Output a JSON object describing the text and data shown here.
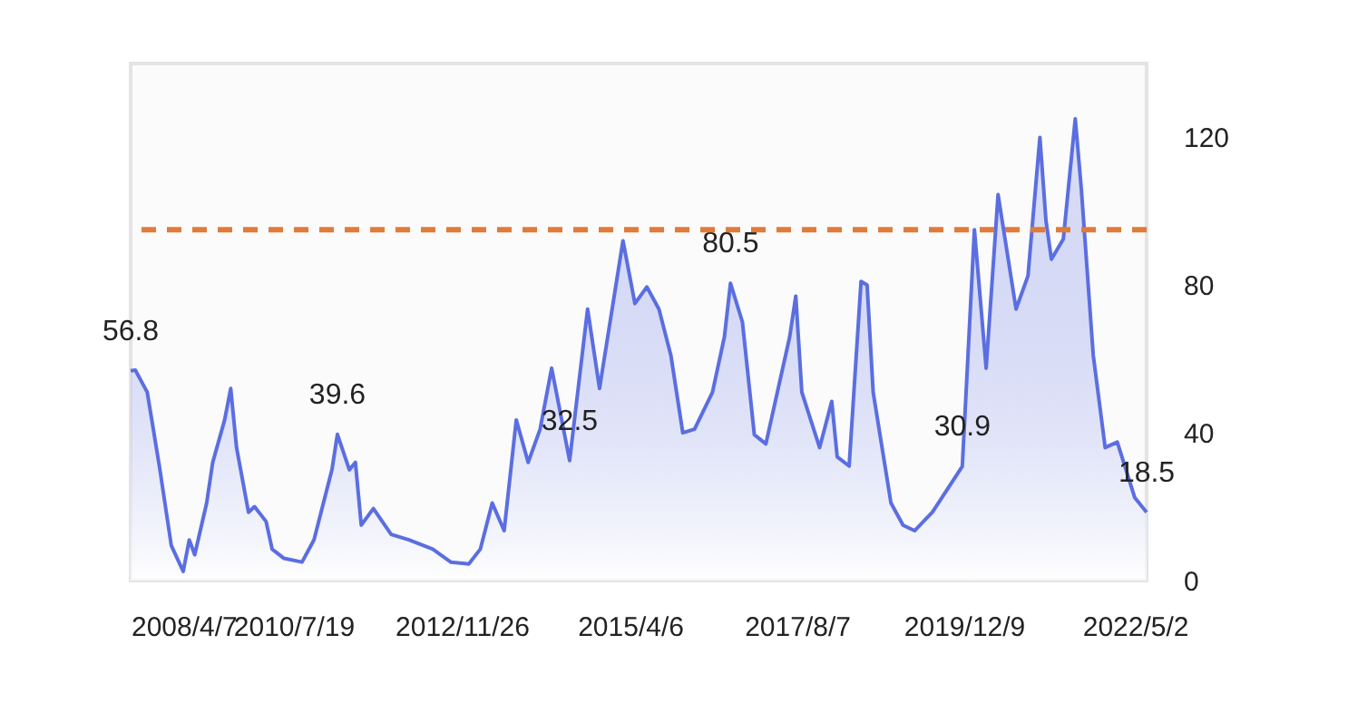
{
  "chart_data": {
    "type": "area",
    "x": [
      "2008-04-07",
      "2008-05",
      "2008-07",
      "2008-09",
      "2008-11",
      "2009-01",
      "2009-02",
      "2009-03",
      "2009-05",
      "2009-06",
      "2009-08",
      "2009-09",
      "2009-10",
      "2009-12",
      "2010-01",
      "2010-03",
      "2010-04",
      "2010-06",
      "2010-09",
      "2010-11",
      "2011-02",
      "2011-03",
      "2011-05",
      "2011-06",
      "2011-07",
      "2011-09",
      "2011-12",
      "2012-03",
      "2012-07",
      "2012-10",
      "2013-01",
      "2013-03",
      "2013-05",
      "2013-07",
      "2013-09",
      "2013-11",
      "2014-01",
      "2014-03",
      "2014-06",
      "2014-09",
      "2014-11",
      "2015-03",
      "2015-05",
      "2015-07",
      "2015-09",
      "2015-11",
      "2016-01",
      "2016-03",
      "2016-06",
      "2016-08",
      "2016-09",
      "2016-11",
      "2017-01",
      "2017-03",
      "2017-07",
      "2017-08",
      "2017-09",
      "2017-12",
      "2018-02",
      "2018-03",
      "2018-05",
      "2018-07",
      "2018-08",
      "2018-09",
      "2018-12",
      "2019-02",
      "2019-04",
      "2019-07",
      "2019-12",
      "2020-02",
      "2020-04",
      "2020-06",
      "2020-09",
      "2020-11",
      "2021-01",
      "2021-02",
      "2021-03",
      "2021-05",
      "2021-07",
      "2021-08",
      "2021-10",
      "2021-12",
      "2022-02",
      "2022-05",
      "2022-07"
    ],
    "series": [
      {
        "color": "#5b6ee1",
        "values": [
          56.8,
          57,
          51,
          31,
          9.5,
          2.5,
          11,
          7,
          21,
          32,
          43.5,
          52,
          36,
          18.5,
          20,
          16,
          8.5,
          6,
          5,
          11,
          30,
          39.6,
          30,
          32,
          15,
          19.5,
          12.5,
          11,
          8.5,
          5,
          4.5,
          8.5,
          21,
          13.5,
          43.5,
          32,
          41,
          57.5,
          32.5,
          73.5,
          52,
          92,
          75,
          79.5,
          73.5,
          61,
          40,
          41,
          51,
          66,
          80.5,
          70,
          39.5,
          37,
          66,
          77,
          51,
          36,
          48.5,
          33.5,
          31,
          81,
          80,
          51,
          21,
          15,
          13.5,
          18.5,
          30.9,
          95,
          57.5,
          104.5,
          73.5,
          82.5,
          120,
          97.5,
          87,
          92.5,
          125,
          106,
          61,
          36,
          37.5,
          22.5,
          18.5
        ],
        "value_labels": [
          "56.8",
          null,
          null,
          null,
          null,
          null,
          null,
          null,
          null,
          null,
          null,
          null,
          null,
          null,
          null,
          null,
          null,
          null,
          null,
          null,
          null,
          "39.6",
          null,
          null,
          null,
          null,
          null,
          null,
          null,
          null,
          null,
          null,
          null,
          null,
          null,
          null,
          null,
          null,
          "32.5",
          null,
          null,
          null,
          null,
          null,
          null,
          null,
          null,
          null,
          null,
          null,
          "80.5",
          null,
          null,
          null,
          null,
          null,
          null,
          null,
          null,
          null,
          null,
          null,
          null,
          null,
          null,
          null,
          null,
          null,
          "30.9",
          null,
          null,
          null,
          null,
          null,
          null,
          null,
          null,
          null,
          null,
          null,
          null,
          null,
          null,
          null,
          "18.5"
        ]
      }
    ],
    "xlim": [
      "2008-04-07",
      "2022-07"
    ],
    "xticks": [
      {
        "value": "2008-04-07",
        "label": "2008/4/7"
      },
      {
        "value": "2010-07-19",
        "label": "2010/7/19"
      },
      {
        "value": "2012-11-26",
        "label": "2012/11/26"
      },
      {
        "value": "2015-04-06",
        "label": "2015/4/6"
      },
      {
        "value": "2017-08-07",
        "label": "2017/8/7"
      },
      {
        "value": "2019-12-09",
        "label": "2019/12/9"
      },
      {
        "value": "2022-05-02",
        "label": "2022/5/2"
      }
    ],
    "ylim": [
      0,
      140
    ],
    "yticks": [
      0,
      40,
      80,
      120
    ],
    "ref_lines": [
      {
        "axis": "y",
        "value": 95,
        "color": "#e07b39",
        "line_style": "dashed"
      }
    ],
    "grid": false
  }
}
